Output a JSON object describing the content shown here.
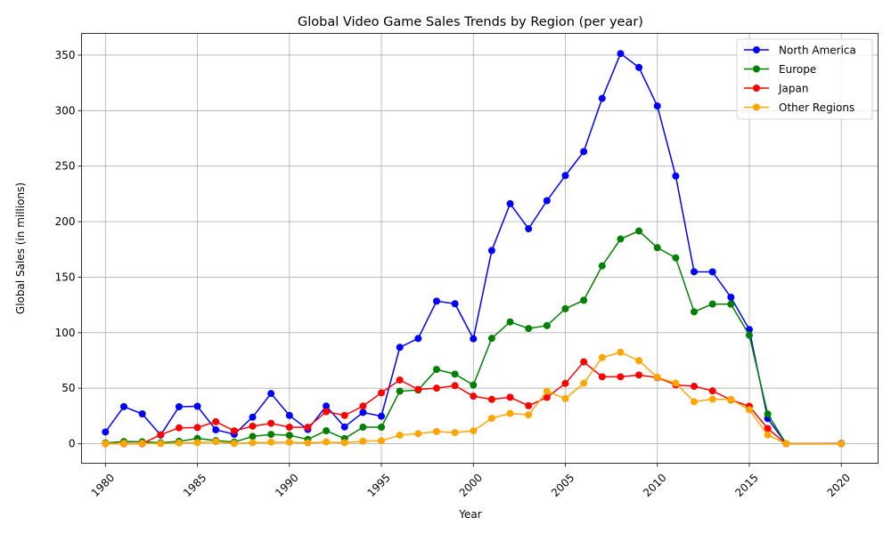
{
  "chart_data": {
    "type": "line",
    "title": "Global Video Game Sales Trends by Region (per year)",
    "xlabel": "Year",
    "ylabel": "Global Sales (in millions)",
    "xlim": [
      1978.7,
      2022.0
    ],
    "ylim": [
      -17.6,
      369.6
    ],
    "xticks": [
      1980,
      1985,
      1990,
      1995,
      2000,
      2005,
      2010,
      2015,
      2020
    ],
    "yticks": [
      0,
      50,
      100,
      150,
      200,
      250,
      300,
      350
    ],
    "grid": true,
    "legend_position": "top-right",
    "x": [
      1980,
      1981,
      1982,
      1983,
      1984,
      1985,
      1986,
      1987,
      1988,
      1989,
      1990,
      1991,
      1992,
      1993,
      1994,
      1995,
      1996,
      1997,
      1998,
      1999,
      2000,
      2001,
      2002,
      2003,
      2004,
      2005,
      2006,
      2007,
      2008,
      2009,
      2010,
      2011,
      2012,
      2013,
      2014,
      2015,
      2016,
      2017,
      2020
    ],
    "series": [
      {
        "name": "North America",
        "color": "#0000ff",
        "values": [
          10.6,
          33.4,
          26.9,
          7.8,
          33.3,
          33.7,
          12.5,
          8.5,
          23.9,
          45.2,
          25.5,
          12.8,
          33.9,
          15.1,
          28.2,
          24.8,
          86.8,
          94.8,
          128.4,
          126.1,
          94.5,
          174.0,
          216.2,
          193.6,
          218.9,
          241.5,
          263.1,
          311.0,
          351.4,
          338.9,
          304.2,
          241.1,
          154.9,
          154.8,
          131.9,
          102.8,
          22.7,
          0.0,
          0.3
        ]
      },
      {
        "name": "Europe",
        "color": "#008000",
        "values": [
          0.7,
          1.9,
          1.7,
          0.8,
          2.1,
          4.7,
          2.8,
          1.4,
          6.6,
          8.4,
          7.6,
          3.9,
          11.7,
          4.6,
          14.9,
          14.9,
          47.3,
          48.3,
          66.9,
          62.7,
          52.8,
          94.9,
          109.7,
          103.8,
          106.4,
          121.6,
          129.2,
          160.2,
          184.4,
          191.6,
          176.6,
          167.4,
          118.8,
          125.8,
          125.7,
          97.7,
          26.8,
          0.0,
          0.0
        ]
      },
      {
        "name": "Japan",
        "color": "#ff0000",
        "values": [
          0.0,
          0.0,
          0.0,
          8.1,
          14.3,
          14.6,
          19.8,
          11.6,
          15.8,
          18.4,
          14.9,
          14.8,
          28.9,
          25.5,
          33.9,
          45.8,
          57.4,
          48.9,
          50.0,
          52.3,
          42.8,
          39.9,
          41.8,
          34.2,
          41.7,
          54.3,
          73.7,
          60.3,
          60.3,
          61.9,
          59.5,
          53.0,
          51.7,
          47.6,
          39.5,
          33.7,
          13.7,
          0.0,
          0.0
        ]
      },
      {
        "name": "Other Regions",
        "color": "#ffa500",
        "values": [
          0.1,
          0.3,
          0.3,
          0.1,
          0.7,
          0.9,
          1.9,
          0.2,
          0.9,
          1.4,
          1.4,
          0.7,
          1.6,
          0.9,
          2.2,
          2.6,
          7.7,
          9.1,
          11.0,
          10.0,
          11.6,
          22.9,
          27.3,
          26.0,
          47.2,
          40.6,
          54.4,
          77.6,
          82.4,
          74.8,
          59.9,
          54.5,
          37.8,
          40.1,
          39.9,
          30.6,
          7.9,
          0.0,
          0.0
        ]
      }
    ]
  }
}
